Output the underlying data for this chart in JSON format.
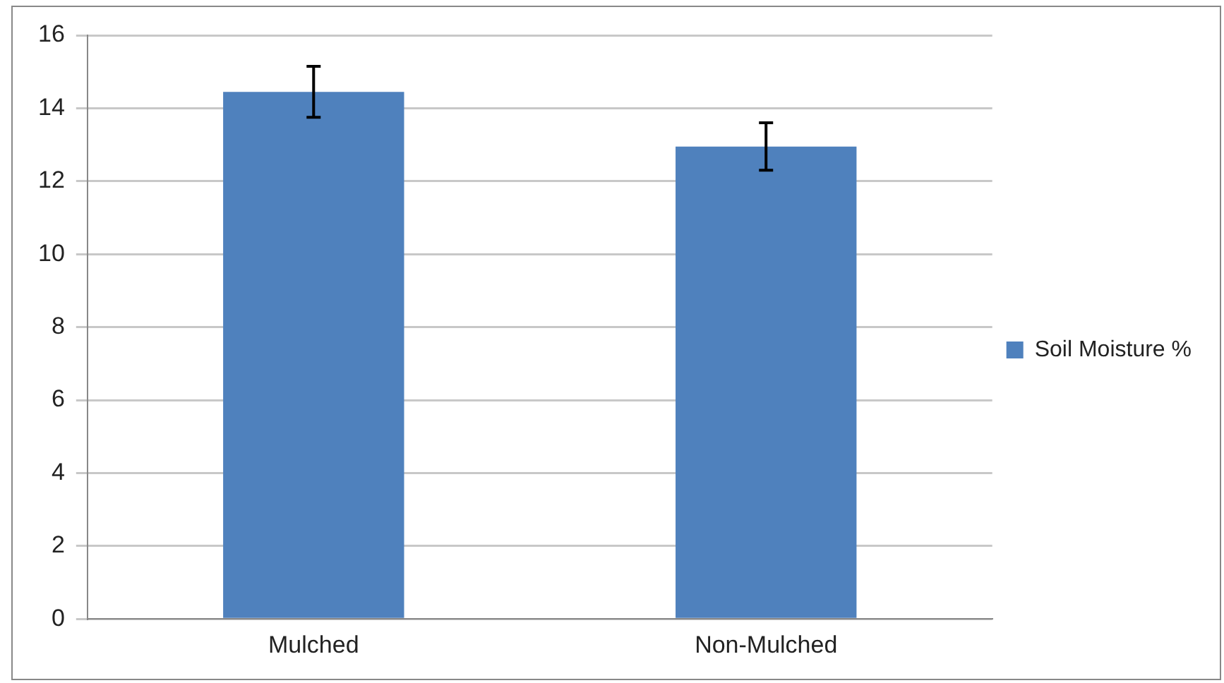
{
  "chart_data": {
    "type": "bar",
    "categories": [
      "Mulched",
      "Non-Mulched"
    ],
    "series": [
      {
        "name": "Soil Moisture %",
        "color": "#4f81bd",
        "values": [
          14.45,
          12.95
        ],
        "errors": [
          0.7,
          0.65
        ]
      }
    ],
    "ylim": [
      0,
      16
    ],
    "yticks": [
      0,
      2,
      4,
      6,
      8,
      10,
      12,
      14,
      16
    ],
    "grid": "y",
    "legend": "right"
  }
}
